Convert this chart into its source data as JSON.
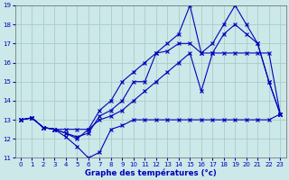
{
  "xlabel": "Graphe des températures (°c)",
  "background_color": "#cce8e8",
  "grid_color": "#aacccc",
  "line_color": "#0000bb",
  "hours": [
    0,
    1,
    2,
    3,
    4,
    5,
    6,
    7,
    8,
    9,
    10,
    11,
    12,
    13,
    14,
    15,
    16,
    17,
    18,
    19,
    20,
    21,
    22,
    23
  ],
  "series_min": [
    13.0,
    13.1,
    12.6,
    12.5,
    12.1,
    11.6,
    11.0,
    11.3,
    12.5,
    12.7,
    13.0,
    13.0,
    13.0,
    13.0,
    13.0,
    13.0,
    13.0,
    13.0,
    13.0,
    13.0,
    13.0,
    13.0,
    13.0,
    13.3
  ],
  "series_max": [
    13.0,
    13.1,
    12.6,
    12.5,
    12.5,
    12.5,
    12.5,
    13.5,
    14.0,
    15.0,
    15.5,
    16.0,
    16.5,
    17.0,
    17.5,
    19.0,
    16.5,
    17.0,
    18.0,
    19.0,
    18.0,
    17.0,
    15.0,
    13.3
  ],
  "series_avg1": [
    13.0,
    13.1,
    12.6,
    12.5,
    12.3,
    12.0,
    12.5,
    13.0,
    13.2,
    13.5,
    14.0,
    14.5,
    15.0,
    15.5,
    16.0,
    16.5,
    14.5,
    16.5,
    16.5,
    16.5,
    16.5,
    16.5,
    16.5,
    13.3
  ],
  "series_avg2": [
    13.0,
    13.1,
    12.6,
    12.5,
    12.3,
    12.1,
    12.3,
    13.2,
    13.5,
    14.0,
    15.0,
    15.0,
    16.5,
    16.6,
    17.0,
    17.0,
    16.5,
    16.5,
    17.5,
    18.0,
    17.5,
    17.0,
    15.0,
    13.3
  ],
  "ylim": [
    11,
    19
  ],
  "xlim": [
    -0.5,
    23.5
  ],
  "yticks": [
    11,
    12,
    13,
    14,
    15,
    16,
    17,
    18,
    19
  ],
  "xticks": [
    0,
    1,
    2,
    3,
    4,
    5,
    6,
    7,
    8,
    9,
    10,
    11,
    12,
    13,
    14,
    15,
    16,
    17,
    18,
    19,
    20,
    21,
    22,
    23
  ]
}
